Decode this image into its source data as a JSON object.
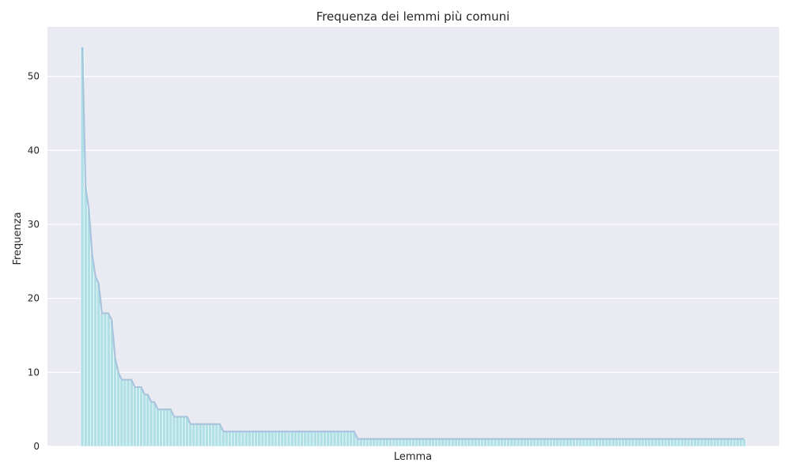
{
  "chart_data": {
    "type": "bar",
    "title": "Frequenza dei lemmi più comuni",
    "xlabel": "Lemma",
    "ylabel": "Frequenza",
    "ylim": [
      0,
      56.7
    ],
    "yticks": [
      0,
      10,
      20,
      30,
      40,
      50
    ],
    "grid": true,
    "line_overlay": true,
    "colors": {
      "plot_background": "#eaeaf2",
      "grid": "#ffffff",
      "bar_fill": "#b0e0e6",
      "bar_edge": "#ffffff",
      "line": "#a9c4dd"
    },
    "values": [
      54,
      35,
      32,
      26,
      23,
      22,
      18,
      18,
      18,
      17,
      12,
      10,
      9,
      9,
      9,
      9,
      8,
      8,
      8,
      7,
      7,
      6,
      6,
      5,
      5,
      5,
      5,
      5,
      4,
      4,
      4,
      4,
      4,
      3,
      3,
      3,
      3,
      3,
      3,
      3,
      3,
      3,
      3,
      2,
      2,
      2,
      2,
      2,
      2,
      2,
      2,
      2,
      2,
      2,
      2,
      2,
      2,
      2,
      2,
      2,
      2,
      2,
      2,
      2,
      2,
      2,
      2,
      2,
      2,
      2,
      2,
      2,
      2,
      2,
      2,
      2,
      2,
      2,
      2,
      2,
      2,
      2,
      2,
      2,
      1,
      1,
      1,
      1,
      1,
      1,
      1,
      1,
      1,
      1,
      1,
      1,
      1,
      1,
      1,
      1,
      1,
      1,
      1,
      1,
      1,
      1,
      1,
      1,
      1,
      1,
      1,
      1,
      1,
      1,
      1,
      1,
      1,
      1,
      1,
      1,
      1,
      1,
      1,
      1,
      1,
      1,
      1,
      1,
      1,
      1,
      1,
      1,
      1,
      1,
      1,
      1,
      1,
      1,
      1,
      1,
      1,
      1,
      1,
      1,
      1,
      1,
      1,
      1,
      1,
      1,
      1,
      1,
      1,
      1,
      1,
      1,
      1,
      1,
      1,
      1,
      1,
      1,
      1,
      1,
      1,
      1,
      1,
      1,
      1,
      1,
      1,
      1,
      1,
      1,
      1,
      1,
      1,
      1,
      1,
      1,
      1,
      1,
      1,
      1,
      1,
      1,
      1,
      1,
      1,
      1,
      1,
      1,
      1,
      1,
      1,
      1,
      1,
      1,
      1,
      1,
      1,
      1,
      1
    ]
  }
}
